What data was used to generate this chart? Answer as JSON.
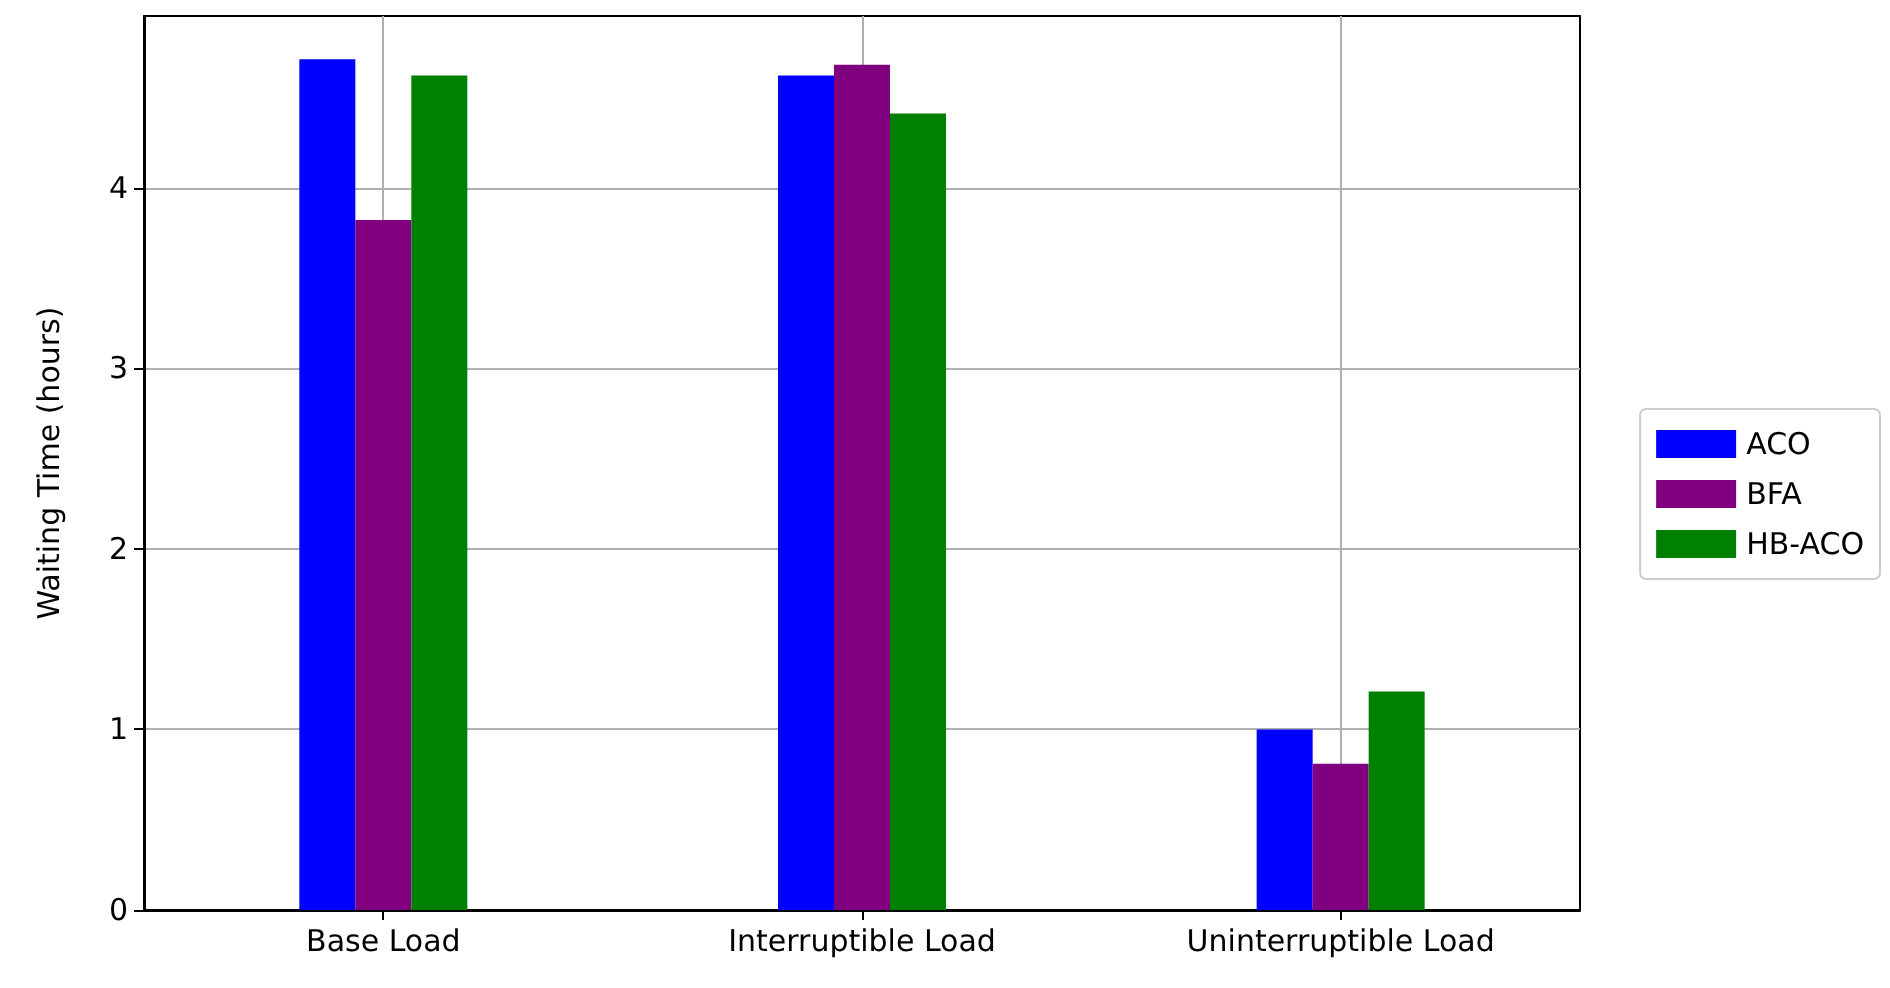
{
  "chart_data": {
    "type": "bar",
    "ylabel": "Waiting Time (hours)",
    "categories": [
      "Base Load",
      "Interruptible Load",
      "Uninterruptible Load"
    ],
    "series": [
      {
        "name": "ACO",
        "color": "#0000ff",
        "values": [
          4.71,
          4.62,
          1.0
        ]
      },
      {
        "name": "BFA",
        "color": "#800080",
        "values": [
          3.82,
          4.68,
          0.81
        ]
      },
      {
        "name": "HB-ACO",
        "color": "#008000",
        "values": [
          4.62,
          4.41,
          1.21
        ]
      }
    ],
    "ylim": [
      0,
      4.95
    ],
    "yticks": [
      0,
      1,
      2,
      3,
      4
    ],
    "grid": true,
    "legend": "right"
  }
}
